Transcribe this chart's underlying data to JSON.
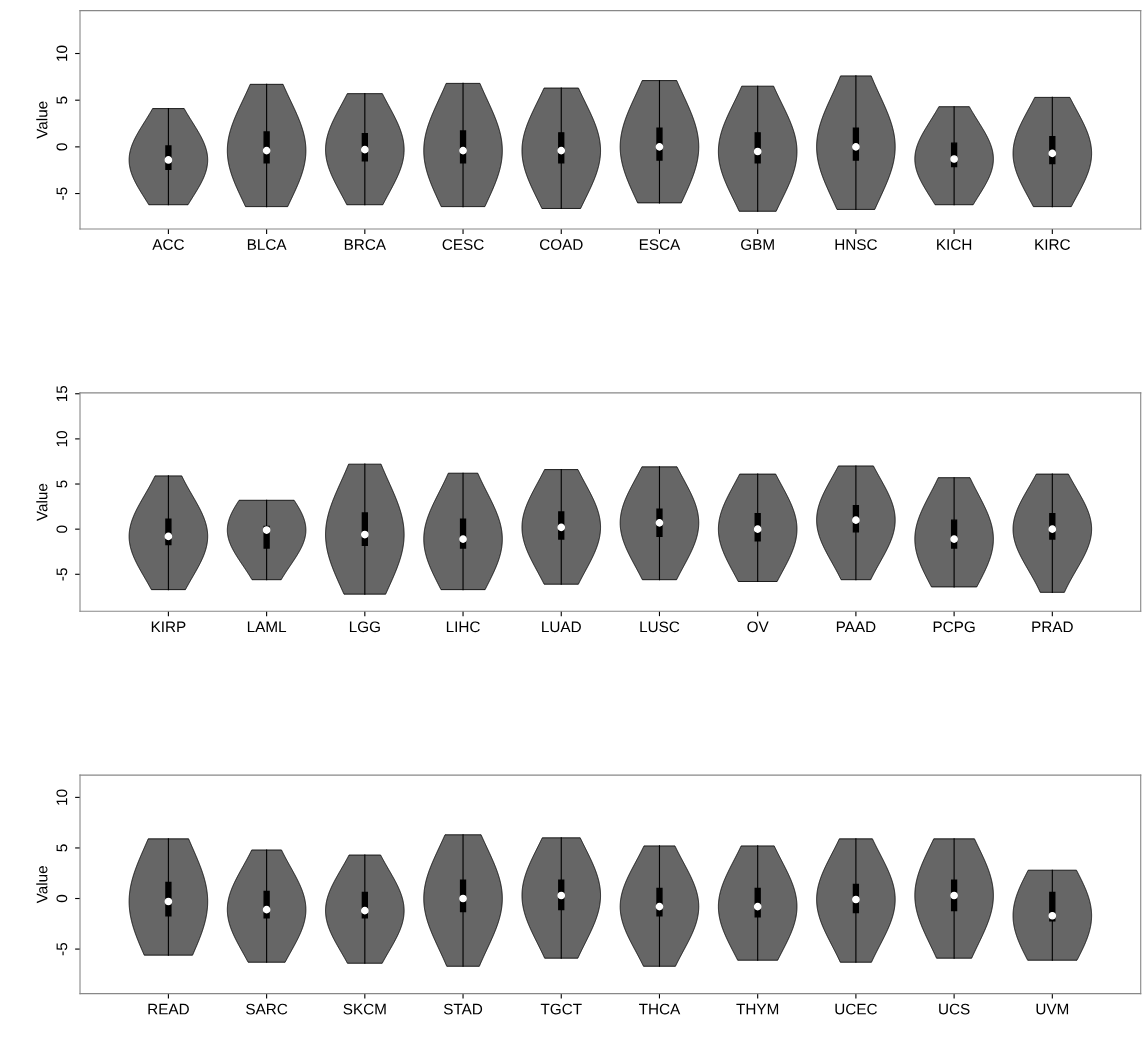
{
  "chart_data": [
    {
      "type": "box",
      "ylabel": "Value",
      "categories": [
        "ACC",
        "BLCA",
        "BRCA",
        "CESC",
        "COAD",
        "ESCA",
        "GBM",
        "HNSC",
        "KICH",
        "KIRC"
      ],
      "ylim": [
        -8.8,
        14.6
      ],
      "yticks": [
        -5,
        0,
        5,
        10
      ],
      "grid": false,
      "color": "#000000",
      "boxes": [
        {
          "low": -6.2,
          "q1": -2.4,
          "median": -1.4,
          "q3": 0.1,
          "high": 4.1
        },
        {
          "low": -6.4,
          "q1": -1.7,
          "median": -0.4,
          "q3": 1.6,
          "high": 6.7
        },
        {
          "low": -6.2,
          "q1": -1.5,
          "median": -0.3,
          "q3": 1.4,
          "high": 5.7
        },
        {
          "low": -6.4,
          "q1": -1.7,
          "median": -0.4,
          "q3": 1.7,
          "high": 6.8
        },
        {
          "low": -6.6,
          "q1": -1.7,
          "median": -0.4,
          "q3": 1.5,
          "high": 6.3
        },
        {
          "low": -6.0,
          "q1": -1.4,
          "median": 0.0,
          "q3": 2.0,
          "high": 7.1
        },
        {
          "low": -6.9,
          "q1": -1.7,
          "median": -0.5,
          "q3": 1.5,
          "high": 6.5
        },
        {
          "low": -6.7,
          "q1": -1.4,
          "median": 0.0,
          "q3": 2.0,
          "high": 7.6
        },
        {
          "low": -6.2,
          "q1": -2.1,
          "median": -1.3,
          "q3": 0.4,
          "high": 4.3
        },
        {
          "low": -6.4,
          "q1": -1.8,
          "median": -0.7,
          "q3": 1.1,
          "high": 5.3
        }
      ]
    },
    {
      "type": "box",
      "ylabel": "Value",
      "categories": [
        "KIRP",
        "LAML",
        "LGG",
        "LIHC",
        "LUAD",
        "LUSC",
        "OV",
        "PAAD",
        "PCPG",
        "PRAD"
      ],
      "ylim": [
        -9.1,
        15.1
      ],
      "yticks": [
        -5,
        0,
        5,
        10,
        15
      ],
      "grid": false,
      "color": "#000000",
      "boxes": [
        {
          "low": -6.7,
          "q1": -1.7,
          "median": -0.8,
          "q3": 1.1,
          "high": 5.9
        },
        {
          "low": -5.6,
          "q1": -2.1,
          "median": -0.1,
          "q3": 0.3,
          "high": 3.2
        },
        {
          "low": -7.2,
          "q1": -1.8,
          "median": -0.6,
          "q3": 1.8,
          "high": 7.2
        },
        {
          "low": -6.7,
          "q1": -2.1,
          "median": -1.1,
          "q3": 1.1,
          "high": 6.2
        },
        {
          "low": -6.1,
          "q1": -1.1,
          "median": 0.2,
          "q3": 1.9,
          "high": 6.6
        },
        {
          "low": -5.6,
          "q1": -0.8,
          "median": 0.7,
          "q3": 2.2,
          "high": 6.9
        },
        {
          "low": -5.8,
          "q1": -1.3,
          "median": 0.0,
          "q3": 1.7,
          "high": 6.1
        },
        {
          "low": -5.6,
          "q1": -0.3,
          "median": 1.0,
          "q3": 2.6,
          "high": 7.0
        },
        {
          "low": -6.4,
          "q1": -2.1,
          "median": -1.1,
          "q3": 1.0,
          "high": 5.7
        },
        {
          "low": -7.0,
          "q1": -1.1,
          "median": 0.0,
          "q3": 1.7,
          "high": 6.1
        }
      ]
    },
    {
      "type": "box",
      "ylabel": "Value",
      "categories": [
        "READ",
        "SARC",
        "SKCM",
        "STAD",
        "TGCT",
        "THCA",
        "THYM",
        "UCEC",
        "UCS",
        "UVM"
      ],
      "ylim": [
        -9.4,
        12.2
      ],
      "yticks": [
        -5,
        0,
        5,
        10
      ],
      "grid": false,
      "color": "#000000",
      "boxes": [
        {
          "low": -5.6,
          "q1": -1.7,
          "median": -0.3,
          "q3": 1.6,
          "high": 5.9
        },
        {
          "low": -6.3,
          "q1": -1.9,
          "median": -1.1,
          "q3": 0.7,
          "high": 4.8
        },
        {
          "low": -6.4,
          "q1": -1.9,
          "median": -1.2,
          "q3": 0.6,
          "high": 4.3
        },
        {
          "low": -6.7,
          "q1": -1.3,
          "median": 0.0,
          "q3": 1.8,
          "high": 6.3
        },
        {
          "low": -5.9,
          "q1": -1.1,
          "median": 0.3,
          "q3": 1.8,
          "high": 6.0
        },
        {
          "low": -6.7,
          "q1": -1.7,
          "median": -0.8,
          "q3": 1.0,
          "high": 5.2
        },
        {
          "low": -6.1,
          "q1": -1.8,
          "median": -0.8,
          "q3": 1.0,
          "high": 5.2
        },
        {
          "low": -6.3,
          "q1": -1.4,
          "median": -0.1,
          "q3": 1.4,
          "high": 5.9
        },
        {
          "low": -5.9,
          "q1": -1.2,
          "median": 0.3,
          "q3": 1.8,
          "high": 5.9
        },
        {
          "low": -6.1,
          "q1": -2.2,
          "median": -1.7,
          "q3": 0.6,
          "high": 2.8
        }
      ]
    }
  ]
}
